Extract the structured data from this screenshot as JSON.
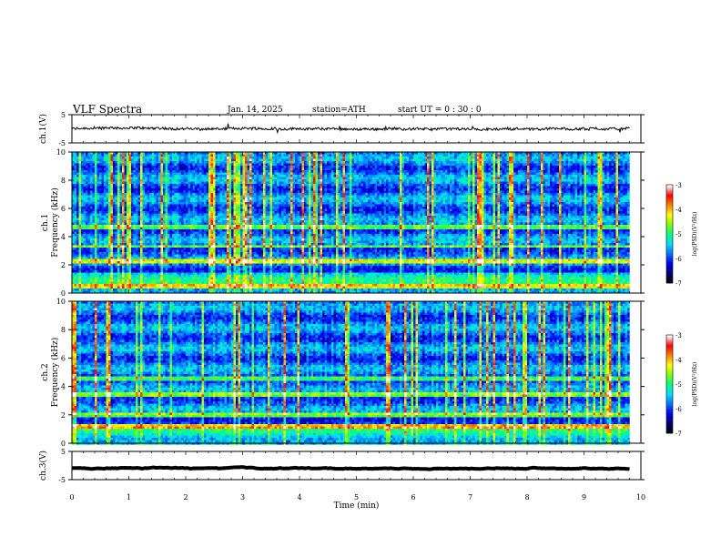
{
  "header": {
    "title": "VLF  Spectra",
    "date": "Jan. 14, 2025",
    "station": "station=ATH",
    "start_ut": "start  UT  =   0 : 30 : 0"
  },
  "chart_data": [
    {
      "type": "line",
      "panel": "ch1-waveform",
      "ylabel": "ch.1(V)",
      "ylim": [
        -5,
        5
      ],
      "y_ticks": [
        "5",
        "-5"
      ],
      "x_range_min": [
        0,
        9.8
      ],
      "approx_level_v": 0.0,
      "line_color": "#000000"
    },
    {
      "type": "heatmap",
      "panel": "ch1-spectrogram",
      "ylabel": "ch.1\nFrequency  (kHz)",
      "ylim": [
        0,
        10
      ],
      "y_ticks": [
        "10",
        "8",
        "6",
        "4",
        "2",
        "0"
      ],
      "x_range_min": [
        0,
        9.8
      ],
      "colorbar": {
        "label": "log(PSD)(V²/Hz)",
        "range": [
          -7,
          -3
        ],
        "ticks": [
          "-3",
          "-4",
          "-5",
          "-6",
          "-7"
        ]
      },
      "bright_bands_khz": [
        0.5,
        2.2,
        3.3,
        4.7
      ]
    },
    {
      "type": "heatmap",
      "panel": "ch2-spectrogram",
      "ylabel": "ch.2\nFrequency  (kHz)",
      "ylim": [
        0,
        10
      ],
      "y_ticks": [
        "10",
        "8",
        "6",
        "4",
        "2",
        "0"
      ],
      "x_range_min": [
        0,
        9.8
      ],
      "colorbar": {
        "label": "log(PSD)(V²/Hz)",
        "range": [
          -7,
          -3
        ],
        "ticks": [
          "-3",
          "-4",
          "-5",
          "-6",
          "-7"
        ]
      },
      "bright_bands_khz": [
        1.2,
        2.0,
        3.5,
        4.6
      ]
    },
    {
      "type": "line",
      "panel": "ch3-waveform",
      "ylabel": "ch.3(V)",
      "ylim": [
        -5,
        5
      ],
      "y_ticks": [
        "5",
        "-5"
      ],
      "x_range_min": [
        0,
        9.8
      ],
      "approx_level_v": -1.0,
      "line_color": "#000000"
    }
  ],
  "xaxis": {
    "label": "Time  (min)",
    "range": [
      0,
      10
    ],
    "ticks": [
      "0",
      "1",
      "2",
      "3",
      "4",
      "5",
      "6",
      "7",
      "8",
      "9",
      "10"
    ]
  },
  "colors": {
    "colormap": [
      "#000000",
      "#00007a",
      "#0000ff",
      "#0078ff",
      "#00e0ff",
      "#00ff80",
      "#80ff00",
      "#ffff00",
      "#ff8000",
      "#ff0000",
      "#ffffff"
    ]
  }
}
